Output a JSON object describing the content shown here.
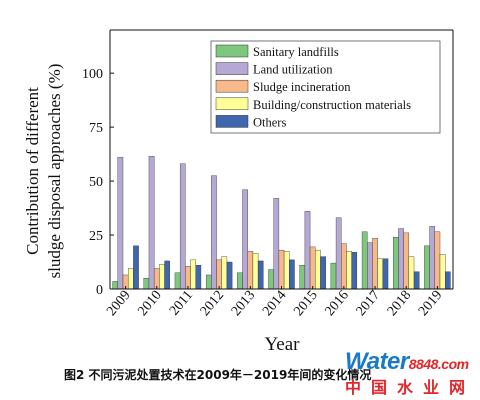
{
  "chart_data": {
    "type": "bar",
    "ylabel_line1": "Contribution of different",
    "ylabel_line2": "sludge disposal approaches (%)",
    "xlabel": "Year",
    "ylim": [
      0,
      120
    ],
    "yticks": [
      0,
      25,
      50,
      75,
      100
    ],
    "grid": false,
    "legend_position": "top-right",
    "categories": [
      "2009",
      "2010",
      "2011",
      "2012",
      "2013",
      "2014",
      "2015",
      "2016",
      "2017",
      "2018",
      "2019"
    ],
    "series": [
      {
        "name": "Sanitary landfills",
        "color": "#7dc87d",
        "values": [
          3.5,
          5,
          7.5,
          6.5,
          7.5,
          9,
          11,
          12,
          26.5,
          24,
          20
        ]
      },
      {
        "name": "Land utilization",
        "color": "#b6a8d4",
        "values": [
          61,
          61.5,
          58,
          52.5,
          46,
          42,
          36,
          33,
          21.5,
          28,
          29
        ]
      },
      {
        "name": "Sludge incineration",
        "color": "#f8b98a",
        "values": [
          6.5,
          9.5,
          10.5,
          13.5,
          17.5,
          18,
          19.5,
          21,
          23.5,
          26,
          26.5
        ]
      },
      {
        "name": "Building/construction materials",
        "color": "#ffff99",
        "values": [
          9.5,
          11.5,
          13.5,
          15,
          16.5,
          17.5,
          18,
          17.5,
          14,
          15,
          16
        ]
      },
      {
        "name": "Others",
        "color": "#3f66ae",
        "values": [
          20,
          13,
          11,
          12.5,
          13,
          13.5,
          15,
          17,
          14,
          8,
          8
        ]
      }
    ]
  },
  "caption": "图2 不同污泥处置技术在2009年－2019年间的变化情况",
  "watermark": {
    "top": "Water",
    "top_suffix": "8848",
    "top_tld": ".com",
    "bottom": "中国水业网"
  }
}
